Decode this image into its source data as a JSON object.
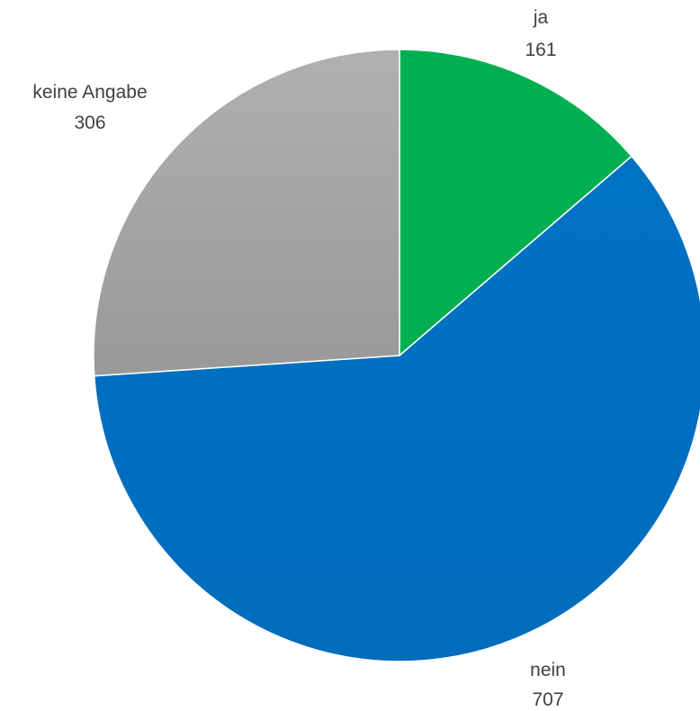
{
  "chart_data": {
    "type": "pie",
    "slices": [
      {
        "label": "ja",
        "value": 161,
        "color": "#00b050"
      },
      {
        "label": "nein",
        "value": 707,
        "color": "#0070c0"
      },
      {
        "label": "keine Angabe",
        "value": 306,
        "color": "#a6a6a6"
      }
    ],
    "start": "12 o'clock, clockwise",
    "legend": "none",
    "data_labels": "category and value"
  }
}
